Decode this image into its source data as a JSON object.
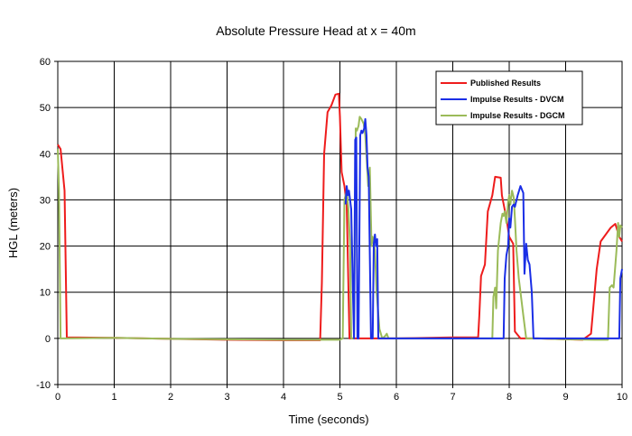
{
  "chart_data": {
    "type": "line",
    "title": "Absolute Pressure Head at x = 40m",
    "xlabel": "Time (seconds)",
    "ylabel": "HGL (meters)",
    "xlim": [
      0,
      10
    ],
    "ylim": [
      -10,
      60
    ],
    "xticks": [
      "0",
      "1",
      "2",
      "3",
      "4",
      "5",
      "6",
      "7",
      "8",
      "9",
      "10"
    ],
    "yticks": [
      "-10",
      "0",
      "10",
      "20",
      "30",
      "40",
      "50",
      "60"
    ],
    "grid": true,
    "legend_position": "top-right",
    "series": [
      {
        "name": "Published Results",
        "color": "#ee1c1c",
        "points": [
          [
            0.0,
            42.0
          ],
          [
            0.05,
            41.0
          ],
          [
            0.12,
            32.0
          ],
          [
            0.16,
            0.2
          ],
          [
            1.0,
            0.1
          ],
          [
            2.0,
            -0.1
          ],
          [
            3.0,
            -0.3
          ],
          [
            4.0,
            -0.4
          ],
          [
            4.65,
            -0.4
          ],
          [
            4.68,
            12.0
          ],
          [
            4.72,
            40.0
          ],
          [
            4.78,
            49.0
          ],
          [
            4.85,
            50.5
          ],
          [
            4.92,
            52.8
          ],
          [
            4.98,
            53.0
          ],
          [
            5.0,
            48.0
          ],
          [
            5.03,
            36.0
          ],
          [
            5.08,
            33.0
          ],
          [
            5.12,
            29.0
          ],
          [
            5.17,
            0.0
          ],
          [
            5.3,
            0.0
          ],
          [
            6.0,
            0.0
          ],
          [
            7.0,
            0.2
          ],
          [
            7.45,
            0.2
          ],
          [
            7.47,
            5.0
          ],
          [
            7.5,
            13.5
          ],
          [
            7.57,
            16.0
          ],
          [
            7.62,
            27.5
          ],
          [
            7.7,
            31.0
          ],
          [
            7.75,
            35.0
          ],
          [
            7.85,
            34.8
          ],
          [
            7.87,
            31.0
          ],
          [
            7.95,
            26.0
          ],
          [
            8.0,
            22.0
          ],
          [
            8.07,
            20.5
          ],
          [
            8.1,
            1.5
          ],
          [
            8.2,
            0.0
          ],
          [
            8.5,
            0.0
          ],
          [
            9.0,
            -0.2
          ],
          [
            9.3,
            -0.3
          ],
          [
            9.45,
            1.0
          ],
          [
            9.55,
            15.0
          ],
          [
            9.62,
            21.0
          ],
          [
            9.8,
            24.0
          ],
          [
            9.88,
            24.8
          ],
          [
            9.95,
            22.0
          ],
          [
            10.0,
            21.0
          ]
        ]
      },
      {
        "name": "Impulse Results - DVCM",
        "color": "#1a2ee6",
        "points": [
          [
            5.1,
            29.0
          ],
          [
            5.12,
            33.0
          ],
          [
            5.14,
            31.0
          ],
          [
            5.16,
            32.0
          ],
          [
            5.2,
            28.0
          ],
          [
            5.23,
            10.0
          ],
          [
            5.25,
            0.0
          ],
          [
            5.27,
            43.0
          ],
          [
            5.29,
            43.5
          ],
          [
            5.31,
            0.0
          ],
          [
            5.33,
            0.0
          ],
          [
            5.36,
            44.0
          ],
          [
            5.38,
            45.0
          ],
          [
            5.4,
            44.5
          ],
          [
            5.43,
            45.5
          ],
          [
            5.45,
            47.5
          ],
          [
            5.47,
            44.0
          ],
          [
            5.49,
            37.0
          ],
          [
            5.51,
            35.0
          ],
          [
            5.55,
            0.0
          ],
          [
            5.58,
            0.0
          ],
          [
            5.6,
            20.5
          ],
          [
            5.62,
            22.5
          ],
          [
            5.64,
            20.0
          ],
          [
            5.66,
            21.5
          ],
          [
            5.68,
            0.0
          ],
          [
            5.75,
            0.0
          ],
          [
            7.9,
            0.0
          ],
          [
            7.92,
            13.0
          ],
          [
            7.95,
            18.0
          ],
          [
            7.98,
            20.0
          ],
          [
            8.0,
            26.0
          ],
          [
            8.02,
            24.0
          ],
          [
            8.05,
            28.5
          ],
          [
            8.08,
            29.0
          ],
          [
            8.1,
            28.5
          ],
          [
            8.15,
            31.0
          ],
          [
            8.2,
            33.0
          ],
          [
            8.25,
            31.5
          ],
          [
            8.27,
            14.0
          ],
          [
            8.3,
            20.5
          ],
          [
            8.33,
            17.0
          ],
          [
            8.36,
            16.0
          ],
          [
            8.4,
            10.0
          ],
          [
            8.43,
            0.0
          ],
          [
            8.5,
            0.0
          ],
          [
            9.95,
            0.0
          ],
          [
            9.97,
            13.0
          ],
          [
            10.0,
            15.0
          ]
        ]
      },
      {
        "name": "Impulse Results - DGCM",
        "color": "#9bbb59",
        "points": [
          [
            0.0,
            41.0
          ],
          [
            0.02,
            32.0
          ],
          [
            0.05,
            0.0
          ],
          [
            1.0,
            0.1
          ],
          [
            2.0,
            -0.1
          ],
          [
            3.0,
            -0.2
          ],
          [
            4.0,
            -0.3
          ],
          [
            5.0,
            -0.3
          ],
          [
            5.05,
            0.0
          ],
          [
            5.08,
            30.0
          ],
          [
            5.12,
            32.0
          ],
          [
            5.15,
            28.0
          ],
          [
            5.18,
            20.0
          ],
          [
            5.2,
            0.0
          ],
          [
            5.25,
            0.0
          ],
          [
            5.28,
            45.5
          ],
          [
            5.3,
            45.0
          ],
          [
            5.33,
            46.0
          ],
          [
            5.35,
            48.0
          ],
          [
            5.38,
            47.5
          ],
          [
            5.42,
            46.5
          ],
          [
            5.45,
            44.0
          ],
          [
            5.5,
            33.0
          ],
          [
            5.53,
            37.0
          ],
          [
            5.56,
            20.0
          ],
          [
            5.58,
            22.0
          ],
          [
            5.62,
            19.0
          ],
          [
            5.65,
            10.0
          ],
          [
            5.7,
            2.0
          ],
          [
            5.75,
            0.0
          ],
          [
            5.8,
            0.5
          ],
          [
            5.83,
            1.0
          ],
          [
            5.86,
            0.0
          ],
          [
            6.0,
            0.0
          ],
          [
            7.0,
            0.0
          ],
          [
            7.7,
            0.0
          ],
          [
            7.72,
            9.0
          ],
          [
            7.75,
            11.0
          ],
          [
            7.77,
            6.5
          ],
          [
            7.8,
            19.0
          ],
          [
            7.85,
            25.0
          ],
          [
            7.88,
            27.0
          ],
          [
            7.9,
            26.5
          ],
          [
            7.92,
            27.5
          ],
          [
            7.95,
            25.0
          ],
          [
            7.98,
            29.5
          ],
          [
            8.0,
            31.0
          ],
          [
            8.02,
            29.0
          ],
          [
            8.05,
            32.0
          ],
          [
            8.08,
            30.5
          ],
          [
            8.1,
            26.0
          ],
          [
            8.13,
            19.0
          ],
          [
            8.17,
            13.0
          ],
          [
            8.2,
            10.0
          ],
          [
            8.25,
            5.0
          ],
          [
            8.3,
            0.0
          ],
          [
            8.5,
            0.0
          ],
          [
            9.0,
            -0.2
          ],
          [
            9.5,
            -0.3
          ],
          [
            9.75,
            -0.3
          ],
          [
            9.78,
            11.0
          ],
          [
            9.82,
            11.5
          ],
          [
            9.85,
            11.0
          ],
          [
            9.9,
            19.0
          ],
          [
            9.93,
            25.0
          ],
          [
            9.95,
            22.0
          ],
          [
            9.97,
            24.5
          ],
          [
            10.0,
            24.0
          ]
        ]
      }
    ]
  }
}
